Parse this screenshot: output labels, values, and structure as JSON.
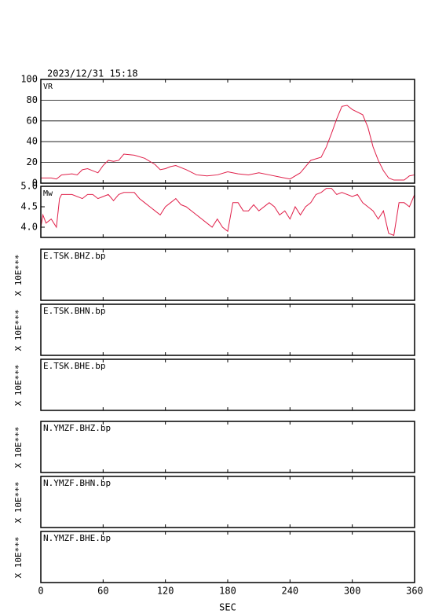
{
  "timestamp": "2023/12/31 15:18",
  "chart_data": [
    {
      "type": "line",
      "ylabel": "VR",
      "color": "#e0204a",
      "grid": true,
      "xlim": [
        0,
        360
      ],
      "ylim": [
        0,
        100
      ],
      "yticks": [
        0,
        20,
        40,
        60,
        80,
        100
      ],
      "x": [
        0,
        10,
        15,
        20,
        30,
        35,
        40,
        45,
        50,
        55,
        60,
        65,
        70,
        75,
        80,
        90,
        100,
        110,
        115,
        120,
        125,
        130,
        140,
        150,
        160,
        170,
        180,
        190,
        200,
        210,
        220,
        230,
        240,
        250,
        255,
        260,
        270,
        275,
        280,
        285,
        290,
        295,
        300,
        310,
        315,
        320,
        325,
        330,
        335,
        340,
        350,
        355,
        360
      ],
      "values": [
        5,
        5,
        4,
        8,
        9,
        8,
        13,
        14,
        12,
        10,
        17,
        22,
        21,
        22,
        28,
        27,
        24,
        18,
        13,
        14,
        16,
        17,
        13,
        8,
        7,
        8,
        11,
        9,
        8,
        10,
        8,
        6,
        4,
        10,
        16,
        22,
        25,
        35,
        48,
        62,
        74,
        75,
        71,
        66,
        54,
        35,
        22,
        12,
        5,
        3,
        3,
        7,
        8
      ]
    },
    {
      "type": "line",
      "ylabel": "Mw",
      "color": "#e0204a",
      "grid": false,
      "xlim": [
        0,
        360
      ],
      "ylim": [
        3.75,
        5.0
      ],
      "yticks": [
        {
          "value": 4.0,
          "label": "4.0"
        },
        4.5,
        {
          "value": 5.0,
          "label": "5.0"
        }
      ],
      "x": [
        0,
        2,
        5,
        10,
        15,
        18,
        20,
        30,
        40,
        45,
        50,
        55,
        60,
        65,
        70,
        75,
        80,
        90,
        95,
        100,
        105,
        110,
        115,
        120,
        125,
        130,
        135,
        140,
        150,
        160,
        165,
        170,
        175,
        180,
        185,
        190,
        195,
        200,
        205,
        210,
        220,
        225,
        230,
        235,
        240,
        245,
        250,
        255,
        260,
        265,
        270,
        275,
        280,
        285,
        290,
        300,
        305,
        310,
        315,
        320,
        325,
        330,
        335,
        340,
        345,
        350,
        355,
        360
      ],
      "values": [
        4.0,
        4.3,
        4.1,
        4.2,
        4.0,
        4.7,
        4.8,
        4.8,
        4.7,
        4.8,
        4.8,
        4.7,
        4.75,
        4.8,
        4.65,
        4.8,
        4.85,
        4.85,
        4.7,
        4.6,
        4.5,
        4.4,
        4.3,
        4.5,
        4.6,
        4.7,
        4.55,
        4.5,
        4.3,
        4.1,
        4.0,
        4.2,
        4.0,
        3.9,
        4.6,
        4.6,
        4.4,
        4.4,
        4.55,
        4.4,
        4.6,
        4.5,
        4.3,
        4.4,
        4.2,
        4.5,
        4.3,
        4.5,
        4.6,
        4.8,
        4.85,
        4.95,
        4.95,
        4.8,
        4.85,
        4.75,
        4.8,
        4.6,
        4.5,
        4.4,
        4.2,
        4.4,
        3.85,
        3.8,
        4.6,
        4.6,
        4.5,
        4.8
      ]
    }
  ],
  "traces": [
    {
      "label": "E.TSK.BHZ.bp",
      "scale": "X 10E***"
    },
    {
      "label": "E.TSK.BHN.bp",
      "scale": "X 10E***"
    },
    {
      "label": "E.TSK.BHE.bp",
      "scale": "X 10E***"
    },
    {
      "label": "N.YMZF.BHZ.bp",
      "scale": "X 10E***"
    },
    {
      "label": "N.YMZF.BHN.bp",
      "scale": "X 10E***"
    },
    {
      "label": "N.YMZF.BHE.bp",
      "scale": "X 10E***"
    }
  ],
  "x_axis": {
    "label": "SEC",
    "xlim": [
      0,
      360
    ],
    "xticks": [
      0,
      60,
      120,
      180,
      240,
      300,
      360
    ]
  }
}
